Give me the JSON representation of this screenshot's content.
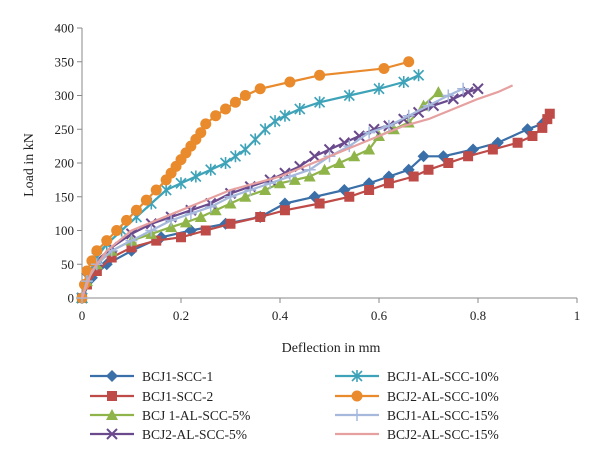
{
  "chart_data": {
    "type": "line",
    "xlabel": "Deflection in mm",
    "ylabel": "Load in kN",
    "xlim": [
      0,
      1
    ],
    "ylim": [
      0,
      400
    ],
    "xticks": [
      0,
      0.2,
      0.4,
      0.6,
      0.8,
      1
    ],
    "yticks": [
      0,
      50,
      100,
      150,
      200,
      250,
      300,
      350,
      400
    ],
    "xtick_labels": [
      "0",
      "0.2",
      "0.4",
      "0.6",
      "0.8",
      "1"
    ],
    "ytick_labels": [
      "0",
      "50",
      "100",
      "150",
      "200",
      "250",
      "300",
      "350",
      "400"
    ],
    "grid": false,
    "legend_position": "bottom",
    "series": [
      {
        "name": "BCJ1-SCC-1",
        "color": "#3a6fa8",
        "marker": "diamond",
        "x": [
          0,
          0.02,
          0.05,
          0.1,
          0.16,
          0.22,
          0.29,
          0.36,
          0.41,
          0.47,
          0.53,
          0.58,
          0.62,
          0.66,
          0.69,
          0.73,
          0.79,
          0.84,
          0.9,
          0.93
        ],
        "y": [
          0,
          30,
          50,
          70,
          90,
          100,
          110,
          120,
          140,
          150,
          160,
          170,
          180,
          190,
          210,
          210,
          220,
          230,
          250,
          258
        ]
      },
      {
        "name": "BCJ1-SCC-2",
        "color": "#be4b48",
        "marker": "square",
        "x": [
          0,
          0.01,
          0.03,
          0.06,
          0.1,
          0.15,
          0.2,
          0.25,
          0.3,
          0.36,
          0.41,
          0.48,
          0.54,
          0.58,
          0.62,
          0.67,
          0.7,
          0.74,
          0.78,
          0.83,
          0.88,
          0.91,
          0.93,
          0.94,
          0.945
        ],
        "y": [
          0,
          20,
          40,
          60,
          75,
          85,
          90,
          100,
          110,
          120,
          130,
          140,
          150,
          160,
          170,
          180,
          190,
          200,
          210,
          220,
          230,
          240,
          252,
          265,
          273
        ]
      },
      {
        "name": "BCJ 1-AL-SCC-5%",
        "color": "#8fb44a",
        "marker": "triangle",
        "x": [
          0,
          0.01,
          0.03,
          0.06,
          0.1,
          0.14,
          0.18,
          0.21,
          0.24,
          0.27,
          0.3,
          0.33,
          0.37,
          0.4,
          0.43,
          0.46,
          0.49,
          0.52,
          0.55,
          0.58,
          0.6,
          0.63,
          0.66,
          0.69,
          0.72
        ],
        "y": [
          0,
          25,
          50,
          70,
          85,
          95,
          105,
          112,
          120,
          130,
          140,
          150,
          160,
          170,
          175,
          180,
          190,
          200,
          210,
          220,
          240,
          250,
          260,
          285,
          305
        ]
      },
      {
        "name": "BCJ2-AL-SCC-5%",
        "color": "#6a4a8c",
        "marker": "x",
        "x": [
          0,
          0.01,
          0.03,
          0.06,
          0.1,
          0.14,
          0.18,
          0.22,
          0.26,
          0.3,
          0.34,
          0.38,
          0.41,
          0.44,
          0.47,
          0.5,
          0.53,
          0.56,
          0.59,
          0.62,
          0.65,
          0.68,
          0.71,
          0.75,
          0.78,
          0.8
        ],
        "y": [
          0,
          30,
          55,
          75,
          95,
          110,
          120,
          130,
          140,
          155,
          165,
          175,
          185,
          195,
          210,
          220,
          230,
          240,
          250,
          255,
          265,
          275,
          285,
          295,
          305,
          310
        ]
      },
      {
        "name": "BCJ1-AL-SCC-10%",
        "color": "#3ea3b8",
        "marker": "star",
        "x": [
          0,
          0.01,
          0.03,
          0.05,
          0.08,
          0.11,
          0.14,
          0.17,
          0.2,
          0.23,
          0.26,
          0.29,
          0.31,
          0.33,
          0.35,
          0.37,
          0.39,
          0.41,
          0.44,
          0.48,
          0.54,
          0.6,
          0.65,
          0.68
        ],
        "y": [
          0,
          30,
          60,
          80,
          100,
          120,
          140,
          160,
          170,
          180,
          190,
          200,
          210,
          220,
          235,
          250,
          262,
          270,
          280,
          290,
          300,
          310,
          320,
          330
        ]
      },
      {
        "name": "BCJ2-AL-SCC-10%",
        "color": "#e98a2c",
        "marker": "circle",
        "x": [
          0,
          0.005,
          0.01,
          0.02,
          0.03,
          0.05,
          0.07,
          0.09,
          0.11,
          0.13,
          0.15,
          0.17,
          0.18,
          0.19,
          0.2,
          0.21,
          0.22,
          0.23,
          0.24,
          0.25,
          0.27,
          0.29,
          0.31,
          0.33,
          0.36,
          0.42,
          0.48,
          0.61,
          0.66
        ],
        "y": [
          0,
          20,
          40,
          55,
          70,
          85,
          100,
          115,
          130,
          145,
          160,
          175,
          185,
          195,
          205,
          215,
          225,
          235,
          245,
          258,
          270,
          280,
          290,
          300,
          310,
          320,
          330,
          340,
          350
        ]
      },
      {
        "name": "BCJ1-AL-SCC-15%",
        "color": "#a6b8dc",
        "marker": "plus",
        "x": [
          0,
          0.01,
          0.03,
          0.06,
          0.1,
          0.14,
          0.18,
          0.22,
          0.26,
          0.3,
          0.34,
          0.38,
          0.42,
          0.46,
          0.5,
          0.54,
          0.58,
          0.62,
          0.66,
          0.7,
          0.74,
          0.77
        ],
        "y": [
          0,
          25,
          50,
          70,
          85,
          100,
          115,
          125,
          135,
          150,
          160,
          170,
          180,
          190,
          210,
          225,
          245,
          255,
          270,
          285,
          300,
          310
        ]
      },
      {
        "name": "BCJ2-AL-SCC-15%",
        "color": "#e6a0a0",
        "marker": "line",
        "x": [
          0,
          0.02,
          0.05,
          0.1,
          0.15,
          0.2,
          0.25,
          0.3,
          0.35,
          0.4,
          0.45,
          0.5,
          0.55,
          0.6,
          0.65,
          0.7,
          0.75,
          0.8,
          0.84,
          0.87
        ],
        "y": [
          0,
          40,
          70,
          100,
          115,
          130,
          145,
          160,
          170,
          180,
          195,
          210,
          225,
          240,
          255,
          265,
          280,
          295,
          305,
          315
        ]
      }
    ]
  }
}
